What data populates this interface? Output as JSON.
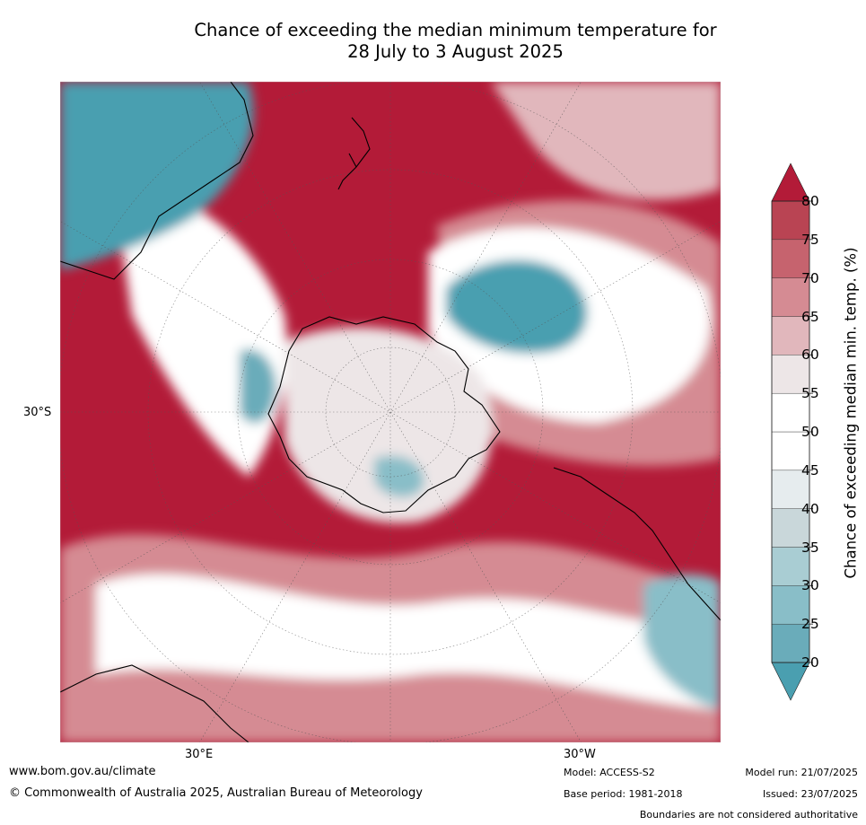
{
  "title_line1": "Chance of exceeding the median minimum temperature for",
  "title_line2": "28 July to 3 August 2025",
  "map": {
    "projection": "south-polar",
    "lat_label": "30°S",
    "lon_label_e": "30°E",
    "lon_label_w": "30°W"
  },
  "colorbar": {
    "title": "Chance of exceeding median min. temp. (%)",
    "ticks": [
      "20",
      "25",
      "30",
      "35",
      "40",
      "45",
      "50",
      "55",
      "60",
      "65",
      "70",
      "75",
      "80"
    ],
    "colors": [
      "#4a9fb0",
      "#6aacba",
      "#89bec8",
      "#a9cdd3",
      "#c9d7da",
      "#e6ecee",
      "#ffffff",
      "#ffffff",
      "#ede6e7",
      "#e1b7bc",
      "#d58b93",
      "#c6636e",
      "#b94453",
      "#b31b38"
    ],
    "extend": "both"
  },
  "footer": {
    "website": "www.bom.gov.au/climate",
    "copyright": "© Commonwealth of Australia 2025, Australian Bureau of Meteorology",
    "model": "Model: ACCESS-S2",
    "base_period": "Base period: 1981-2018",
    "model_run": "Model run: 21/07/2025",
    "issued": "Issued: 23/07/2025",
    "disclaimer": "Boundaries are not considered authoritative"
  }
}
